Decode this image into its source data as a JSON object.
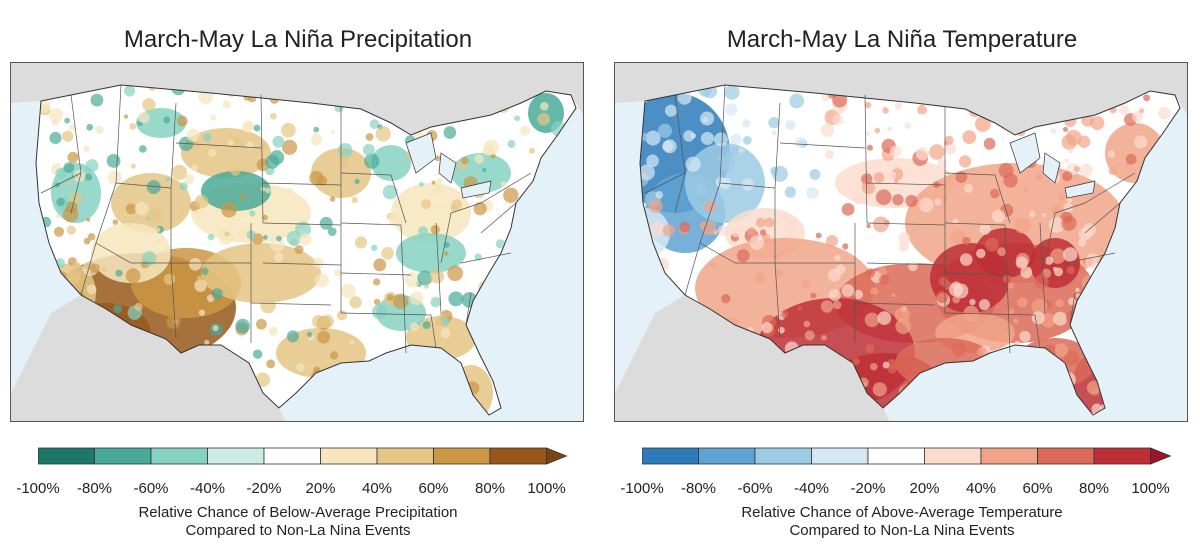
{
  "panels": [
    {
      "title": "March-May La Niña Precipitation",
      "variable": "precipitation",
      "colorbar": {
        "colors": [
          "#1b7868",
          "#4aaa98",
          "#86d2c2",
          "#cdece6",
          "#ffffff",
          "#f7e6bd",
          "#e4c684",
          "#cb9744",
          "#98581c"
        ],
        "arrow_color": "#7a4510",
        "ticks": [
          "-100%",
          "-80%",
          "-60%",
          "-40%",
          "-20%",
          "20%",
          "40%",
          "60%",
          "80%",
          "100%"
        ]
      },
      "caption_line1": "Relative Chance of Below-Average Precipitation",
      "caption_line2": "Compared to Non-La Nina Events"
    },
    {
      "title": "March-May La Niña Temperature",
      "variable": "temperature",
      "colorbar": {
        "colors": [
          "#2d7bbb",
          "#5fa3d2",
          "#9ccbe4",
          "#d6e8f3",
          "#ffffff",
          "#fcdcce",
          "#f1a488",
          "#db6a57",
          "#bd2f37"
        ],
        "arrow_color": "#9c1428",
        "ticks": [
          "-100%",
          "-80%",
          "-60%",
          "-40%",
          "-20%",
          "20%",
          "40%",
          "60%",
          "80%",
          "100%"
        ]
      },
      "caption_line1": "Relative Chance of Above-Average Temperature",
      "caption_line2": "Compared to Non-La Nina Events"
    }
  ],
  "colors": {
    "ocean": "#e4f1f8",
    "land_outside": "#dcdcdc",
    "us_land": "#ffffff",
    "borders": "#333333"
  }
}
